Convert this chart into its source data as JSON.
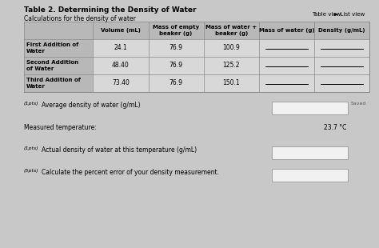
{
  "title": "Table 2. Determining the Density of Water",
  "subtitle": "Calculations for the density of water",
  "top_right_text1": "Table view",
  "top_right_text2": "► List view",
  "col_headers": [
    "Volume (mL)",
    "Mass of empty\nbeaker (g)",
    "Mass of water +\nbeaker (g)",
    "Mass of water (g)",
    "Density (g/mL)"
  ],
  "row_labels": [
    "First Addition of\nWater",
    "Second Addition\nof Water",
    "Third Addition of\nWater"
  ],
  "data": [
    [
      "24.1",
      "76.9",
      "100.9",
      "",
      ""
    ],
    [
      "48.40",
      "76.9",
      "125.2",
      "",
      ""
    ],
    [
      "73.40",
      "76.9",
      "150.1",
      "",
      ""
    ]
  ],
  "below_table": [
    {
      "pts": "(1pts)",
      "text": "Average density of water (g/mL)",
      "has_box": true,
      "saved": true,
      "right_text": ""
    },
    {
      "pts": "",
      "text": "Measured temperature:",
      "has_box": false,
      "saved": false,
      "right_text": "23.7 °C"
    },
    {
      "pts": "(1pts)",
      "text": "Actual density of water at this temperature (g/mL)",
      "has_box": true,
      "saved": false,
      "right_text": ""
    },
    {
      "pts": "(5pts)",
      "text": "Calculate the percent error of your density measurement.",
      "has_box": true,
      "saved": false,
      "right_text": ""
    }
  ],
  "bg_color": "#c8c8c8",
  "table_bg": "#e0e0e0",
  "header_bg": "#b8b8b8",
  "cell_bg": "#d8d8d8",
  "box_color": "#f0f0f0",
  "box_border": "#999999",
  "line_color": "#888888"
}
